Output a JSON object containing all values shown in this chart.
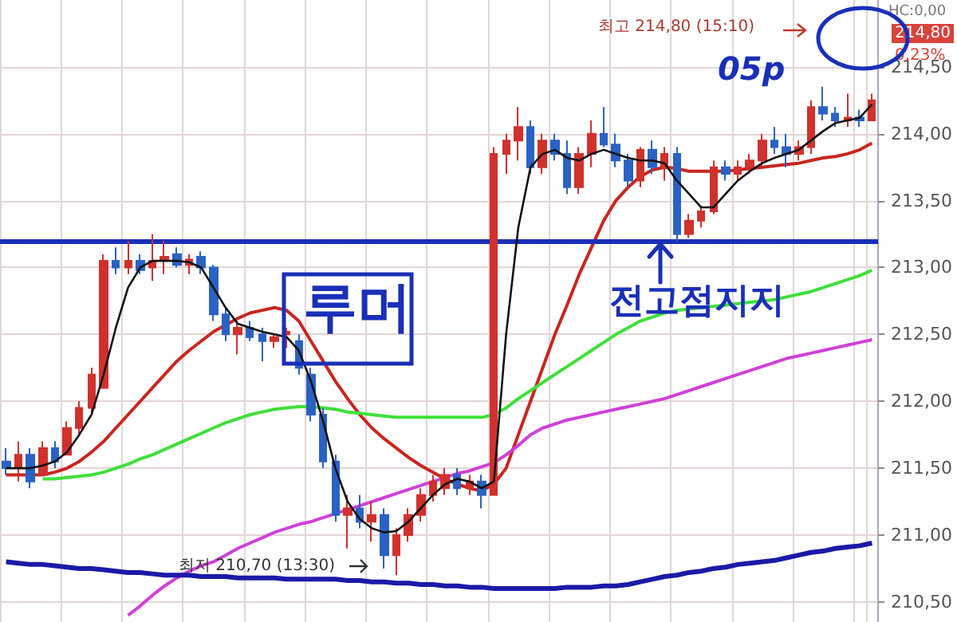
{
  "chart_data": {
    "type": "candlestick",
    "categories": [
      null,
      null,
      null,
      null,
      null,
      null,
      null,
      null,
      null,
      null,
      null,
      null,
      null,
      null,
      null,
      null,
      null,
      null,
      null,
      null,
      null,
      null,
      null,
      null,
      null,
      null,
      null,
      null,
      null,
      null,
      null,
      null,
      null,
      null,
      null,
      null,
      null,
      null,
      null,
      null,
      null,
      null,
      null,
      null,
      null,
      null,
      null,
      null,
      null,
      null,
      null,
      null,
      null,
      null,
      null,
      null,
      null,
      null,
      null,
      null,
      null,
      null,
      null,
      null,
      null,
      null,
      null,
      null,
      null,
      null,
      null,
      null
    ],
    "ohlc": [
      [
        211.55,
        211.65,
        211.45,
        211.5
      ],
      [
        211.5,
        211.7,
        211.4,
        211.6
      ],
      [
        211.6,
        211.65,
        211.35,
        211.4
      ],
      [
        211.45,
        211.7,
        211.45,
        211.65
      ],
      [
        211.65,
        211.7,
        211.5,
        211.55
      ],
      [
        211.6,
        211.85,
        211.6,
        211.8
      ],
      [
        211.8,
        212.0,
        211.75,
        211.95
      ],
      [
        211.95,
        212.25,
        211.9,
        212.2
      ],
      [
        212.1,
        213.1,
        212.1,
        213.05
      ],
      [
        213.05,
        213.15,
        212.95,
        213.0
      ],
      [
        213.0,
        213.2,
        212.95,
        213.05
      ],
      [
        213.05,
        213.1,
        212.95,
        212.98
      ],
      [
        213.0,
        213.25,
        212.9,
        213.05
      ],
      [
        213.05,
        213.2,
        212.95,
        213.08
      ],
      [
        213.1,
        213.15,
        213.0,
        213.02
      ],
      [
        213.02,
        213.1,
        212.95,
        213.06
      ],
      [
        213.08,
        213.12,
        212.95,
        213.0
      ],
      [
        213.0,
        213.02,
        212.6,
        212.65
      ],
      [
        212.65,
        212.7,
        212.45,
        212.5
      ],
      [
        212.5,
        212.6,
        212.35,
        212.55
      ],
      [
        212.55,
        212.6,
        212.45,
        212.48
      ],
      [
        212.5,
        212.55,
        212.3,
        212.45
      ],
      [
        212.45,
        212.5,
        212.4,
        212.48
      ],
      [
        212.5,
        212.55,
        212.4,
        212.52
      ],
      [
        212.45,
        212.5,
        212.2,
        212.25
      ],
      [
        212.2,
        212.25,
        211.85,
        211.9
      ],
      [
        211.9,
        211.95,
        211.5,
        211.55
      ],
      [
        211.55,
        211.6,
        211.1,
        211.15
      ],
      [
        211.15,
        211.3,
        210.9,
        211.2
      ],
      [
        211.2,
        211.3,
        211.05,
        211.1
      ],
      [
        211.1,
        211.25,
        210.95,
        211.15
      ],
      [
        211.15,
        211.2,
        210.75,
        210.85
      ],
      [
        210.85,
        211.05,
        210.7,
        211.0
      ],
      [
        211.0,
        211.2,
        210.95,
        211.15
      ],
      [
        211.15,
        211.35,
        211.1,
        211.3
      ],
      [
        211.3,
        211.45,
        211.25,
        211.4
      ],
      [
        211.35,
        211.5,
        211.3,
        211.45
      ],
      [
        211.45,
        211.5,
        211.3,
        211.35
      ],
      [
        211.35,
        211.45,
        211.3,
        211.4
      ],
      [
        211.4,
        211.45,
        211.2,
        211.3
      ],
      [
        211.3,
        213.9,
        211.3,
        213.85
      ],
      [
        213.85,
        214.0,
        213.7,
        213.95
      ],
      [
        213.95,
        214.2,
        213.8,
        214.05
      ],
      [
        214.05,
        214.1,
        213.7,
        213.75
      ],
      [
        213.75,
        214.0,
        213.7,
        213.95
      ],
      [
        213.95,
        214.0,
        213.8,
        213.85
      ],
      [
        213.85,
        213.95,
        213.55,
        213.6
      ],
      [
        213.6,
        213.9,
        213.55,
        213.85
      ],
      [
        213.85,
        214.1,
        213.75,
        214.0
      ],
      [
        214.0,
        214.2,
        213.9,
        213.92
      ],
      [
        213.92,
        214.0,
        213.75,
        213.8
      ],
      [
        213.8,
        213.85,
        213.6,
        213.65
      ],
      [
        213.65,
        213.9,
        213.6,
        213.88
      ],
      [
        213.88,
        213.95,
        213.7,
        213.75
      ],
      [
        213.75,
        213.9,
        213.65,
        213.85
      ],
      [
        213.85,
        213.9,
        213.2,
        213.25
      ],
      [
        213.25,
        213.4,
        213.22,
        213.35
      ],
      [
        213.35,
        213.45,
        213.3,
        213.42
      ],
      [
        213.42,
        213.8,
        213.4,
        213.75
      ],
      [
        213.75,
        213.8,
        213.65,
        213.7
      ],
      [
        213.7,
        213.8,
        213.65,
        213.75
      ],
      [
        213.75,
        213.85,
        213.7,
        213.8
      ],
      [
        213.8,
        214.0,
        213.75,
        213.95
      ],
      [
        213.95,
        214.05,
        213.85,
        213.9
      ],
      [
        213.9,
        214.0,
        213.75,
        213.85
      ],
      [
        213.85,
        213.95,
        213.8,
        213.9
      ],
      [
        213.9,
        214.25,
        213.85,
        214.2
      ],
      [
        214.2,
        214.35,
        214.1,
        214.15
      ],
      [
        214.15,
        214.2,
        214.05,
        214.1
      ],
      [
        214.1,
        214.3,
        214.05,
        214.12
      ],
      [
        214.12,
        214.18,
        214.05,
        214.1
      ],
      [
        214.1,
        214.3,
        214.1,
        214.25
      ]
    ],
    "colors": [
      "#2a62c4",
      "#d0312d",
      "#2a62c4",
      "#d0312d",
      "#2a62c4",
      "#d0312d",
      "#d0312d",
      "#d0312d",
      "#d0312d",
      "#2a62c4",
      "#d0312d",
      "#2a62c4",
      "#d0312d",
      "#d0312d",
      "#2a62c4",
      "#d0312d",
      "#2a62c4",
      "#2a62c4",
      "#2a62c4",
      "#d0312d",
      "#2a62c4",
      "#2a62c4",
      "#d0312d",
      "#d0312d",
      "#2a62c4",
      "#2a62c4",
      "#2a62c4",
      "#2a62c4",
      "#d0312d",
      "#2a62c4",
      "#d0312d",
      "#2a62c4",
      "#d0312d",
      "#d0312d",
      "#d0312d",
      "#d0312d",
      "#d0312d",
      "#2a62c4",
      "#d0312d",
      "#2a62c4",
      "#d0312d",
      "#d0312d",
      "#d0312d",
      "#2a62c4",
      "#d0312d",
      "#2a62c4",
      "#2a62c4",
      "#d0312d",
      "#d0312d",
      "#2a62c4",
      "#2a62c4",
      "#2a62c4",
      "#d0312d",
      "#2a62c4",
      "#d0312d",
      "#2a62c4",
      "#d0312d",
      "#d0312d",
      "#d0312d",
      "#2a62c4",
      "#d0312d",
      "#d0312d",
      "#d0312d",
      "#2a62c4",
      "#2a62c4",
      "#d0312d",
      "#d0312d",
      "#2a62c4",
      "#2a62c4",
      "#d0312d",
      "#2a62c4",
      "#d0312d"
    ],
    "series": [
      {
        "type": "line",
        "color": "#111111",
        "values": [
          211.5,
          211.5,
          211.5,
          211.52,
          211.55,
          211.62,
          211.75,
          211.9,
          212.2,
          212.55,
          212.85,
          213.0,
          213.05,
          213.05,
          213.05,
          213.04,
          213.0,
          212.85,
          212.7,
          212.58,
          212.55,
          212.52,
          212.5,
          212.48,
          212.38,
          212.15,
          211.85,
          211.5,
          211.25,
          211.12,
          211.05,
          211.02,
          211.03,
          211.1,
          211.2,
          211.3,
          211.38,
          211.42,
          211.4,
          211.35,
          211.4,
          212.5,
          213.3,
          213.75,
          213.85,
          213.88,
          213.82,
          213.8,
          213.85,
          213.88,
          213.85,
          213.82,
          213.8,
          213.8,
          213.78,
          213.65,
          213.55,
          213.45,
          213.45,
          213.55,
          213.65,
          213.72,
          213.78,
          213.82,
          213.85,
          213.88,
          213.95,
          214.02,
          214.08,
          214.1,
          214.12,
          214.22
        ]
      },
      {
        "type": "line",
        "color": "#c8261e",
        "values": [
          211.45,
          211.45,
          211.45,
          211.45,
          211.47,
          211.5,
          211.55,
          211.62,
          211.7,
          211.8,
          211.9,
          212.0,
          212.1,
          212.2,
          212.3,
          212.38,
          212.45,
          212.52,
          212.57,
          212.62,
          212.66,
          212.68,
          212.7,
          212.68,
          212.6,
          212.45,
          212.3,
          212.15,
          212.02,
          211.9,
          211.8,
          211.72,
          211.65,
          211.58,
          211.52,
          211.47,
          211.42,
          211.38,
          211.35,
          211.33,
          211.38,
          211.5,
          211.75,
          212.0,
          212.25,
          212.5,
          212.72,
          212.95,
          213.15,
          213.35,
          213.5,
          213.6,
          213.68,
          213.73,
          213.75,
          213.74,
          213.72,
          213.72,
          213.72,
          213.72,
          213.73,
          213.74,
          213.75,
          213.76,
          213.77,
          213.78,
          213.8,
          213.82,
          213.83,
          213.85,
          213.88,
          213.93
        ]
      },
      {
        "type": "line",
        "color": "#3ee03a",
        "values": [
          null,
          null,
          null,
          211.42,
          211.42,
          211.43,
          211.44,
          211.45,
          211.47,
          211.5,
          211.53,
          211.57,
          211.6,
          211.64,
          211.68,
          211.72,
          211.76,
          211.8,
          211.84,
          211.87,
          211.9,
          211.92,
          211.94,
          211.95,
          211.96,
          211.96,
          211.95,
          211.94,
          211.92,
          211.91,
          211.9,
          211.89,
          211.88,
          211.88,
          211.88,
          211.88,
          211.88,
          211.88,
          211.88,
          211.88,
          211.9,
          211.95,
          212.02,
          212.08,
          212.14,
          212.2,
          212.26,
          212.32,
          212.38,
          212.44,
          212.5,
          212.55,
          212.6,
          212.63,
          212.66,
          212.68,
          212.69,
          212.7,
          212.71,
          212.72,
          212.73,
          212.74,
          212.75,
          212.76,
          212.78,
          212.8,
          212.82,
          212.85,
          212.88,
          212.91,
          212.94,
          212.98
        ]
      },
      {
        "type": "line",
        "color": "#d040d8",
        "values": [
          null,
          null,
          null,
          null,
          null,
          null,
          null,
          null,
          null,
          null,
          210.4,
          210.47,
          210.55,
          210.62,
          210.68,
          210.73,
          210.77,
          210.8,
          210.85,
          210.9,
          210.94,
          210.98,
          211.02,
          211.05,
          211.08,
          211.1,
          211.13,
          211.16,
          211.19,
          211.22,
          211.25,
          211.28,
          211.31,
          211.34,
          211.37,
          211.4,
          211.43,
          211.46,
          211.48,
          211.51,
          211.54,
          211.6,
          211.67,
          211.75,
          211.8,
          211.83,
          211.86,
          211.88,
          211.9,
          211.92,
          211.94,
          211.96,
          211.98,
          212.0,
          212.02,
          212.05,
          212.08,
          212.11,
          212.14,
          212.17,
          212.2,
          212.23,
          212.26,
          212.29,
          212.32,
          212.34,
          212.36,
          212.38,
          212.4,
          212.42,
          212.44,
          212.46
        ]
      },
      {
        "type": "line",
        "color": "#1a1aa8",
        "values": [
          210.8,
          210.79,
          210.78,
          210.78,
          210.77,
          210.76,
          210.75,
          210.75,
          210.74,
          210.73,
          210.72,
          210.72,
          210.71,
          210.7,
          210.7,
          210.7,
          210.69,
          210.69,
          210.69,
          210.68,
          210.68,
          210.68,
          210.68,
          210.67,
          210.67,
          210.67,
          210.67,
          210.67,
          210.66,
          210.66,
          210.65,
          210.65,
          210.64,
          210.64,
          210.63,
          210.63,
          210.62,
          210.62,
          210.61,
          210.61,
          210.6,
          210.6,
          210.6,
          210.6,
          210.6,
          210.6,
          210.61,
          210.61,
          210.61,
          210.62,
          210.62,
          210.63,
          210.65,
          210.67,
          210.69,
          210.7,
          210.72,
          210.73,
          210.75,
          210.76,
          210.78,
          210.79,
          210.8,
          210.81,
          210.83,
          210.85,
          210.87,
          210.88,
          210.9,
          210.91,
          210.92,
          210.94
        ]
      }
    ],
    "ylim": [
      210.35,
      215.0
    ],
    "yticks": [
      {
        "value": 210.5,
        "label": "210,50"
      },
      {
        "value": 211.0,
        "label": "211,00"
      },
      {
        "value": 211.5,
        "label": "211,50"
      },
      {
        "value": 212.0,
        "label": "212,00"
      },
      {
        "value": 212.5,
        "label": "212,50"
      },
      {
        "value": 213.0,
        "label": "213,00"
      },
      {
        "value": 213.5,
        "label": "213,50"
      },
      {
        "value": 214.0,
        "label": "214,00"
      },
      {
        "value": 214.5,
        "label": "214,50"
      }
    ],
    "tick_labels": "y",
    "grid": true,
    "marker": "none",
    "line_style": "solid",
    "ref_lines": [
      {
        "axis": "y",
        "value": 213.2,
        "color": "#1a2fb8"
      }
    ],
    "annotations": [
      "HC:0,00",
      "214,80",
      "0,23%",
      "최고 214,80 (15:10)",
      "05p",
      "루머",
      "전고점지지",
      "최저 210,70 (13:30)"
    ]
  }
}
